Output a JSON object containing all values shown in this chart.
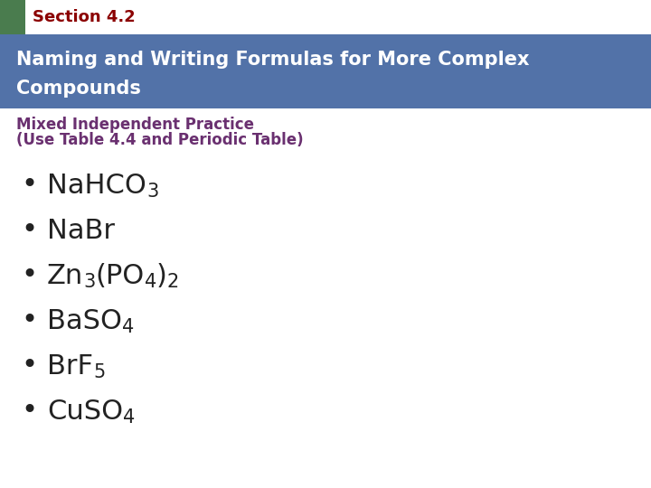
{
  "section_label": "Section 4.2",
  "section_label_color": "#8b0000",
  "header_bg_color": "#5272a8",
  "header_text_line1": "Naming and Writing Formulas for More Complex",
  "header_text_line2": "Compounds",
  "header_text_color": "#ffffff",
  "green_square_color": "#4a7c4e",
  "subtitle_line1": "Mixed Independent Practice",
  "subtitle_line2": "(Use Table 4.4 and Periodic Table)",
  "subtitle_color": "#6a3070",
  "bg_color": "#ffffff",
  "bullet_color": "#222222",
  "compounds": [
    [
      [
        "NaHCO",
        false
      ],
      [
        "3",
        true
      ]
    ],
    [
      [
        "NaBr",
        false
      ]
    ],
    [
      [
        "Zn",
        false
      ],
      [
        "3",
        true
      ],
      [
        "(PO",
        false
      ],
      [
        "4",
        true
      ],
      [
        ")",
        false
      ],
      [
        "2",
        true
      ]
    ],
    [
      [
        "BaSO",
        false
      ],
      [
        "4",
        true
      ]
    ],
    [
      [
        "BrF",
        false
      ],
      [
        "5",
        true
      ]
    ],
    [
      [
        "CuSO",
        false
      ],
      [
        "4",
        true
      ]
    ]
  ],
  "main_fontsize": 22,
  "sub_fontsize": 15
}
